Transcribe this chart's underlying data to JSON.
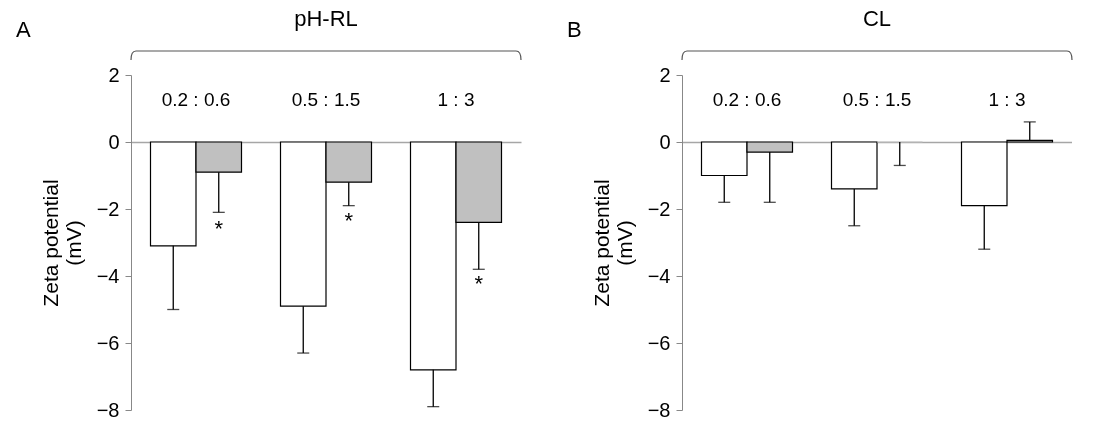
{
  "chart_data": [
    {
      "type": "bar",
      "title": "pH-RL",
      "ylabel": "Zeta potential\n(mV)",
      "categories": [
        "0.2 : 0.6",
        "0.5 : 1.5",
        "1 : 3"
      ],
      "series": [
        {
          "color": "#ffffff",
          "values": [
            -3.1,
            -4.9,
            -6.8
          ],
          "errors": [
            [
              -5.0,
              -3.1
            ],
            [
              -6.3,
              -4.9
            ],
            [
              -7.9,
              -6.8
            ]
          ]
        },
        {
          "color": "#c0c0c0",
          "values": [
            -0.9,
            -1.2,
            -2.4
          ],
          "errors": [
            [
              -2.1,
              -0.9
            ],
            [
              -1.9,
              -1.2
            ],
            [
              -3.8,
              -2.4
            ]
          ]
        }
      ],
      "ylim": [
        -8,
        2
      ],
      "yticks": [
        -8,
        -6,
        -4,
        -2,
        0,
        2
      ],
      "annotations": [
        "A",
        {
          "text": "*",
          "x": "0.2 : 0.6",
          "y": -2.6
        },
        {
          "text": "*",
          "x": "0.5 : 1.5",
          "y": -2.35
        },
        {
          "text": "*",
          "x": "1 : 3",
          "y": -4.25
        }
      ]
    },
    {
      "type": "bar",
      "title": "CL",
      "ylabel": "Zeta potential\n(mV)",
      "categories": [
        "0.2 : 0.6",
        "0.5 : 1.5",
        "1 : 3"
      ],
      "series": [
        {
          "color": "#ffffff",
          "values": [
            -1.0,
            -1.4,
            -1.9
          ],
          "errors": [
            [
              -1.8,
              -1.0
            ],
            [
              -2.5,
              -1.4
            ],
            [
              -3.2,
              -1.9
            ]
          ]
        },
        {
          "color": "#c0c0c0",
          "values": [
            -0.3,
            0,
            0.05
          ],
          "errors": [
            [
              -1.8,
              -0.3
            ],
            [
              -0.7,
              0
            ],
            [
              0.05,
              0.6
            ]
          ]
        }
      ],
      "ylim": [
        -8,
        2
      ],
      "yticks": [
        -8,
        -6,
        -4,
        -2,
        0,
        2
      ],
      "annotations": [
        "B"
      ]
    }
  ]
}
